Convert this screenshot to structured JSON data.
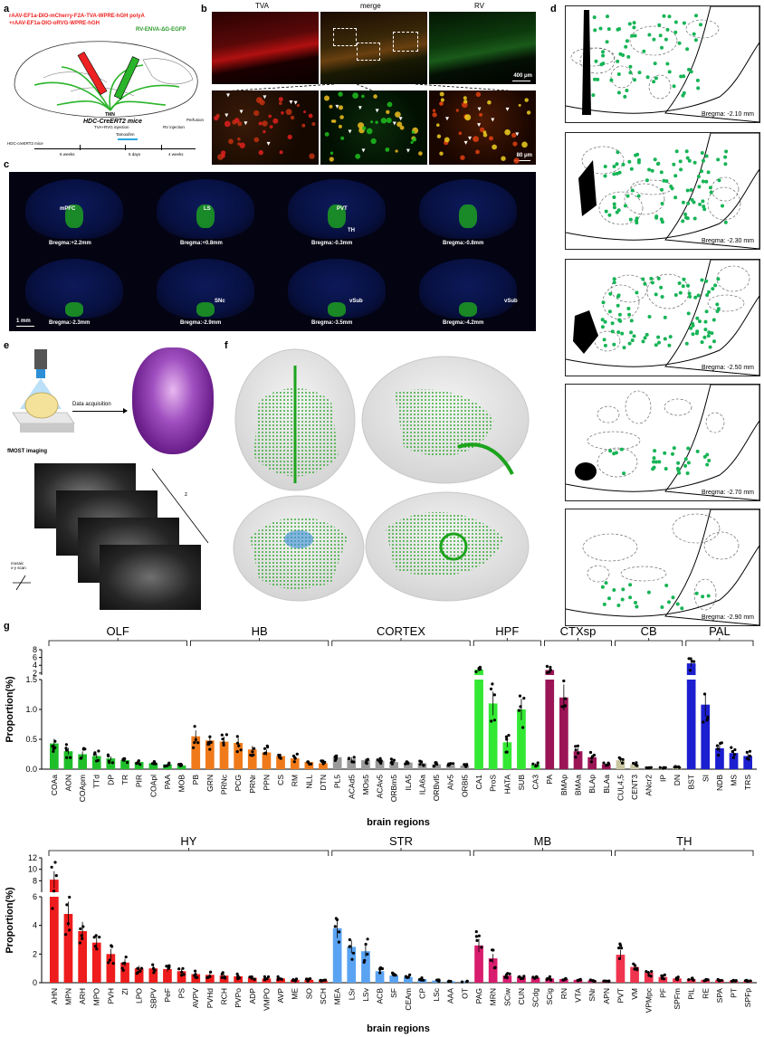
{
  "panels": {
    "a": {
      "label": "a",
      "virus_lines": [
        "rAAV-EF1a-DIO-mCherry-F2A-TVA-WPRE-hGH polyA",
        "+rAAV-EF1a-DIO-oRVG-WPRE-hGH"
      ],
      "rv_label": "RV-ENVA-ΔG-EGFP",
      "target": "TMN",
      "mouse": "HDC-CreERT2 mice",
      "timeline": {
        "start_label": "HDC-creERT2 mice",
        "events": [
          "TVA+RVG injection",
          "Tamoxifen",
          "RV injection",
          "Perfusion"
        ],
        "durations": [
          "6 weeks",
          "5 days",
          "4 weeks"
        ]
      }
    },
    "b": {
      "label": "b",
      "titles": [
        "TVA",
        "merge",
        "RV"
      ],
      "scale_top": "400 μm",
      "scale_bottom": "80 μm"
    },
    "c": {
      "label": "c",
      "sections": [
        {
          "region": "mPFC",
          "bregma": "Bregma:+2.2mm"
        },
        {
          "region": "LS",
          "bregma": "Bregma:+0.8mm"
        },
        {
          "region": "PVT",
          "region2": "TH",
          "bregma": "Bregma:-0.3mm"
        },
        {
          "region": "",
          "bregma": "Bregma:-0.8mm"
        },
        {
          "region": "",
          "bregma": "Bregma:-2.3mm"
        },
        {
          "region": "SNc",
          "bregma": "Bregma:-2.9mm"
        },
        {
          "region": "vSub",
          "bregma": "Bregma:-3.5mm"
        },
        {
          "region": "vSub",
          "bregma": "Bregma:-4.2mm"
        }
      ],
      "scale": "1 mm"
    },
    "d": {
      "label": "d",
      "bregmas": [
        "Bregma: -2.10 mm",
        "Bregma: -2.30 mm",
        "Bregma: -2.50 mm",
        "Bregma: -2.70 mm",
        "Bregma: -2.90 mm"
      ]
    },
    "e": {
      "label": "e",
      "acquisition": "Data acquisition",
      "imaging": "fMOST imaging",
      "axis_z": "z",
      "mosaic": "mosaic\nx-y scan"
    },
    "f": {
      "label": "f"
    },
    "g": {
      "label": "g"
    }
  },
  "chart_data": [
    {
      "type": "bar",
      "ylabel": "Proportion(%)",
      "xlabel": "brain regions",
      "y_axis": {
        "lower_ticks": [
          "0.0",
          "0.5",
          "1.0",
          "1.5"
        ],
        "upper_ticks": [
          "2",
          "4",
          "6",
          "8"
        ],
        "lower_range": [
          0,
          1.5
        ],
        "upper_range": [
          1.5,
          8
        ]
      },
      "groups": [
        {
          "name": "OLF",
          "color": "#1fbf2a",
          "regions": [
            "COAa",
            "AON",
            "COApm",
            "TTd",
            "DP",
            "TR",
            "PIR",
            "COApl",
            "PAA",
            "MOB"
          ],
          "values": [
            0.43,
            0.3,
            0.25,
            0.22,
            0.18,
            0.15,
            0.12,
            0.1,
            0.08,
            0.06
          ]
        },
        {
          "name": "HB",
          "color": "#f07a1a",
          "regions": [
            "PB",
            "GRN",
            "PRNc",
            "PCG",
            "PRNr",
            "PPN",
            "CS",
            "RM",
            "NLL",
            "DTN"
          ],
          "values": [
            0.55,
            0.48,
            0.46,
            0.44,
            0.33,
            0.28,
            0.22,
            0.18,
            0.12,
            0.1
          ]
        },
        {
          "name": "CORTEX",
          "color": "#9a9a9a",
          "regions": [
            "PL5",
            "ACAd5",
            "MOs5",
            "ACAv5",
            "ORBm5",
            "ILA5",
            "ILA6a",
            "ORBvl5",
            "AIv5",
            "ORBl5"
          ],
          "values": [
            0.2,
            0.17,
            0.15,
            0.14,
            0.12,
            0.11,
            0.1,
            0.08,
            0.07,
            0.06
          ]
        },
        {
          "name": "HPF",
          "color": "#33e833",
          "regions": [
            "CA1",
            "ProS",
            "SUB",
            "HATA",
            "CA3"
          ],
          "values": [
            2.9,
            1.1,
            1.0,
            0.45,
            0.08
          ],
          "display_order": [
            "CA1",
            "ProS",
            "HATA",
            "SUB",
            "CA3"
          ]
        },
        {
          "name": "CTXsp",
          "color": "#9b1456",
          "regions": [
            "PA",
            "BMAp",
            "BMAa",
            "BLAp",
            "BLAa"
          ],
          "values": [
            2.8,
            1.2,
            0.3,
            0.2,
            0.08
          ]
        },
        {
          "name": "CB",
          "color": "#c8c5a0",
          "regions": [
            "CUL4,5",
            "CENT3",
            "ANcr2",
            "IP",
            "DN"
          ],
          "values": [
            0.15,
            0.08,
            0.03,
            0.02,
            0.04
          ]
        },
        {
          "name": "PAL",
          "color": "#1c1fcf",
          "regions": [
            "BST",
            "SI",
            "NDB",
            "MS",
            "TRS"
          ],
          "values": [
            4.5,
            1.08,
            0.35,
            0.27,
            0.22
          ]
        }
      ]
    },
    {
      "type": "bar",
      "ylabel": "Proportion(%)",
      "xlabel": "brain regions",
      "y_axis": {
        "lower_ticks": [
          "0",
          "2",
          "4",
          "6"
        ],
        "upper_ticks": [
          "8",
          "10",
          "12"
        ],
        "lower_range": [
          0,
          6
        ],
        "upper_range": [
          6,
          12
        ]
      },
      "groups": [
        {
          "name": "HY",
          "color": "#ee1c1c",
          "regions": [
            "AHN",
            "MPN",
            "ARH",
            "MPO",
            "PVH",
            "ZI",
            "LPO",
            "SBPV",
            "PeF",
            "PS",
            "AVPV",
            "PVHd",
            "RCH",
            "PVPo",
            "ADP",
            "VMPO",
            "AVP",
            "ME",
            "SO",
            "SCH"
          ],
          "values": [
            8.2,
            4.8,
            3.6,
            2.8,
            2.0,
            1.4,
            1.0,
            1.0,
            0.95,
            0.8,
            0.6,
            0.55,
            0.5,
            0.45,
            0.35,
            0.3,
            0.3,
            0.2,
            0.2,
            0.15
          ]
        },
        {
          "name": "STR",
          "color": "#5aa3f2",
          "regions": [
            "MEA",
            "LSr",
            "LSv",
            "ACB",
            "SF",
            "CEAm",
            "CP",
            "LSc",
            "AAA",
            "OT"
          ],
          "values": [
            3.8,
            2.5,
            2.2,
            0.8,
            0.5,
            0.4,
            0.25,
            0.15,
            0.1,
            0.08
          ]
        },
        {
          "name": "MB",
          "color": "#d81c6e",
          "regions": [
            "PAG",
            "MRN",
            "SCiw",
            "CUN",
            "SCdg",
            "SCig",
            "RN",
            "VTA",
            "SNr",
            "APN"
          ],
          "values": [
            2.6,
            1.7,
            0.5,
            0.4,
            0.35,
            0.3,
            0.25,
            0.2,
            0.15,
            0.12
          ]
        },
        {
          "name": "TH",
          "color": "#f0344e",
          "regions": [
            "PVT",
            "VM",
            "VPMpc",
            "PF",
            "SPFm",
            "PIL",
            "RE",
            "SPA",
            "PT",
            "SPFp"
          ],
          "values": [
            1.95,
            1.1,
            0.7,
            0.4,
            0.3,
            0.25,
            0.2,
            0.18,
            0.15,
            0.12
          ]
        }
      ]
    }
  ]
}
